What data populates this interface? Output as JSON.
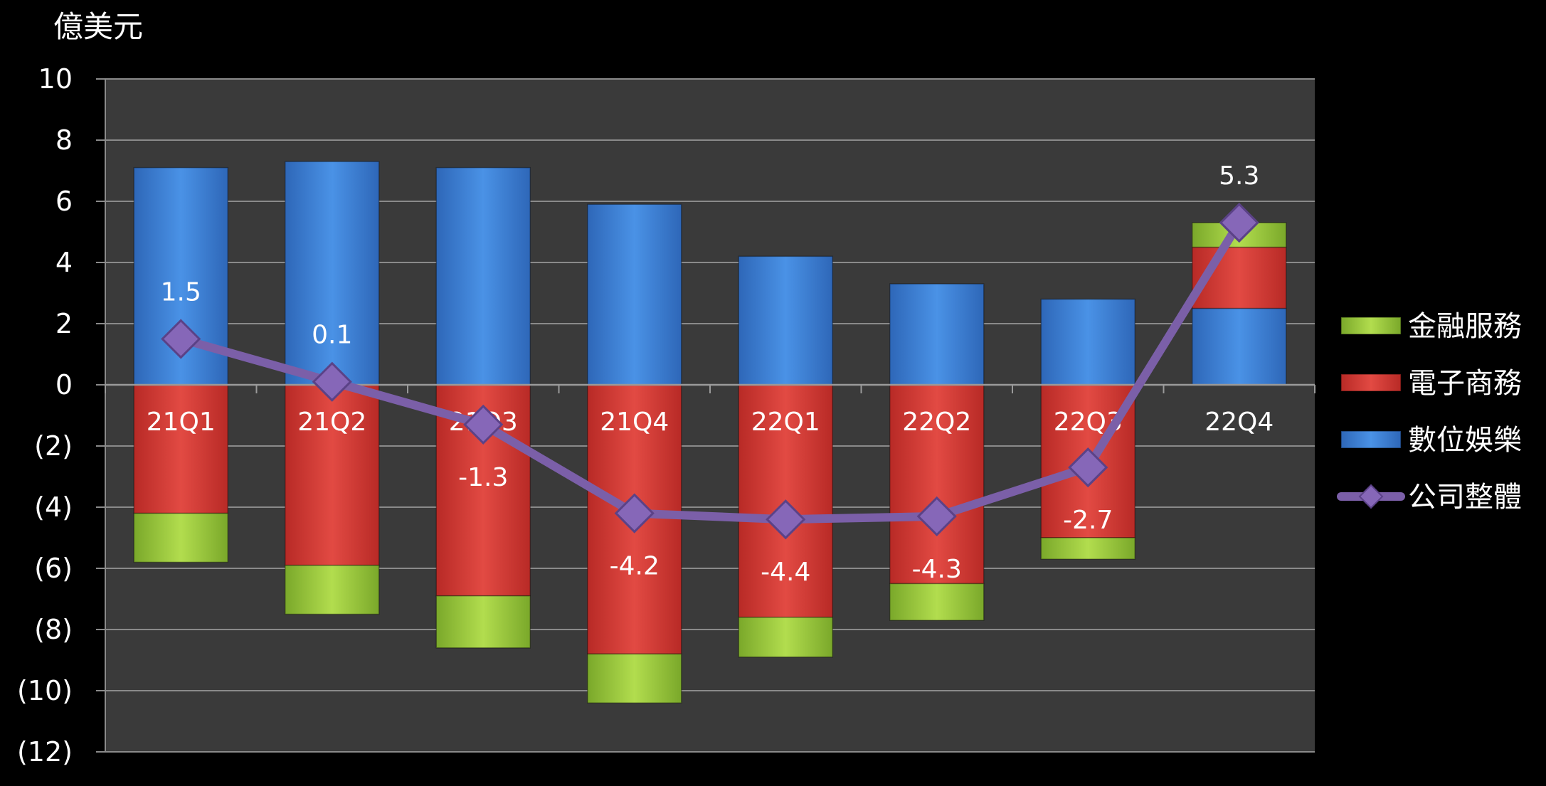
{
  "chart_data": {
    "type": "bar",
    "stacked": true,
    "unit_label": "億美元",
    "categories": [
      "21Q1",
      "21Q2",
      "21Q3",
      "21Q4",
      "22Q1",
      "22Q2",
      "22Q3",
      "22Q4"
    ],
    "y_ticks": [
      "10",
      "8",
      "6",
      "4",
      "2",
      "0",
      "(2)",
      "(4)",
      "(6)",
      "(8)",
      "(10)",
      "(12)"
    ],
    "ylim": [
      -12,
      10
    ],
    "grid": true,
    "legend_position": "right",
    "series": [
      {
        "name": "數位娛樂",
        "kind": "bar",
        "color": "#3a7fd5",
        "values": [
          7.1,
          7.3,
          7.1,
          5.9,
          4.2,
          3.3,
          2.8,
          2.5
        ]
      },
      {
        "name": "電子商務",
        "kind": "bar",
        "color": "#d93a34",
        "values": [
          -4.2,
          -5.9,
          -6.9,
          -8.8,
          -7.6,
          -6.5,
          -5.0,
          2.0
        ]
      },
      {
        "name": "金融服務",
        "kind": "bar",
        "color": "#9acb34",
        "values": [
          -1.6,
          -1.6,
          -1.7,
          -1.6,
          -1.3,
          -1.2,
          -0.7,
          0.8
        ]
      },
      {
        "name": "公司整體",
        "kind": "line",
        "color": "#7b5fa8",
        "values": [
          1.5,
          0.1,
          -1.3,
          -4.2,
          -4.4,
          -4.3,
          -2.7,
          5.3
        ],
        "labels": [
          "1.5",
          "0.1",
          "-1.3",
          "-4.2",
          "-4.4",
          "-4.3",
          "-2.7",
          "5.3"
        ]
      }
    ],
    "legend": [
      {
        "name": "金融服務",
        "color": "#9acb34",
        "marker": "bar"
      },
      {
        "name": "電子商務",
        "color": "#d93a34",
        "marker": "bar"
      },
      {
        "name": "數位娛樂",
        "color": "#3a7fd5",
        "marker": "bar"
      },
      {
        "name": "公司整體",
        "color": "#7b5fa8",
        "marker": "line-diamond"
      }
    ]
  }
}
